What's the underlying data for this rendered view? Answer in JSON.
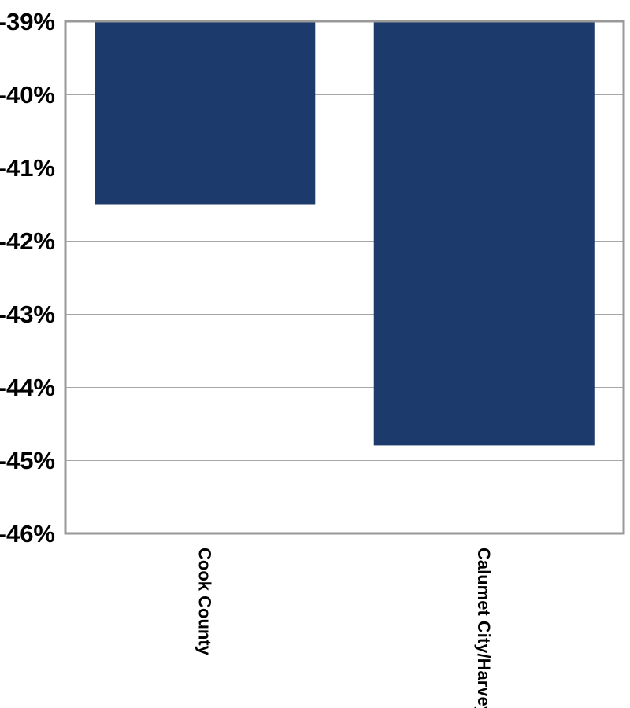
{
  "chart_data": {
    "type": "bar",
    "title": "",
    "xlabel": "",
    "ylabel": "",
    "categories": [
      "Cook County",
      "Calumet City/Harvey"
    ],
    "values": [
      -41.5,
      -44.8
    ],
    "ylim": [
      -46,
      -39
    ],
    "y_ticks": [
      -39,
      -40,
      -41,
      -42,
      -43,
      -44,
      -45,
      -46
    ],
    "y_tick_labels": [
      "-39%",
      "-40%",
      "-41%",
      "-42%",
      "-43%",
      "-44%",
      "-45%",
      "-46%"
    ],
    "grid": true,
    "legend": "none",
    "colors": {
      "bar": "#1c3a6b",
      "gridline": "#a6a6a6",
      "axis_frame": "#999999"
    }
  }
}
